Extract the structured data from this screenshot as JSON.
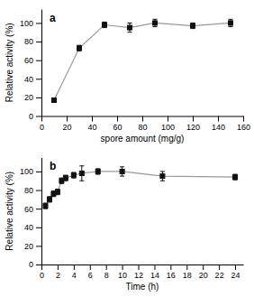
{
  "chart_data": [
    {
      "type": "line",
      "annotations": [
        "a"
      ],
      "x_label": "spore amount (mg/g)",
      "y_label": "Relative activity (%)",
      "x": [
        10,
        30,
        50,
        70,
        90,
        120,
        150
      ],
      "series": [
        {
          "values": [
            17,
            73,
            98,
            95,
            100,
            97,
            100
          ],
          "yerr": [
            2,
            3,
            3,
            5,
            4,
            3,
            4
          ],
          "color": "#111111",
          "marker": "square"
        }
      ],
      "color": "#999999",
      "xlim": [
        0,
        160
      ],
      "ylim": [
        0,
        115
      ],
      "xticks": [
        0,
        20,
        40,
        60,
        80,
        100,
        120,
        140,
        160
      ],
      "yticks": [
        0,
        20,
        40,
        60,
        80,
        100
      ]
    },
    {
      "type": "line",
      "annotations": [
        "b"
      ],
      "x_label": "Time (h)",
      "y_label": "Relative activity (%)",
      "x": [
        0.5,
        1,
        1.5,
        2,
        2.5,
        3,
        4,
        5,
        7,
        10,
        15,
        24
      ],
      "series": [
        {
          "values": [
            63,
            70,
            76,
            78,
            90,
            93,
            96,
            98,
            100,
            100,
            95,
            94
          ],
          "yerr": [
            3,
            3,
            3,
            3,
            3,
            3,
            3,
            8,
            3,
            5,
            5,
            3
          ],
          "color": "#111111",
          "marker": "square"
        }
      ],
      "color": "#999999",
      "xlim": [
        0,
        25
      ],
      "ylim": [
        0,
        115
      ],
      "xticks": [
        0,
        2,
        4,
        6,
        8,
        10,
        12,
        14,
        16,
        18,
        20,
        22,
        24
      ],
      "yticks": [
        0,
        20,
        40,
        60,
        80,
        100
      ]
    }
  ]
}
